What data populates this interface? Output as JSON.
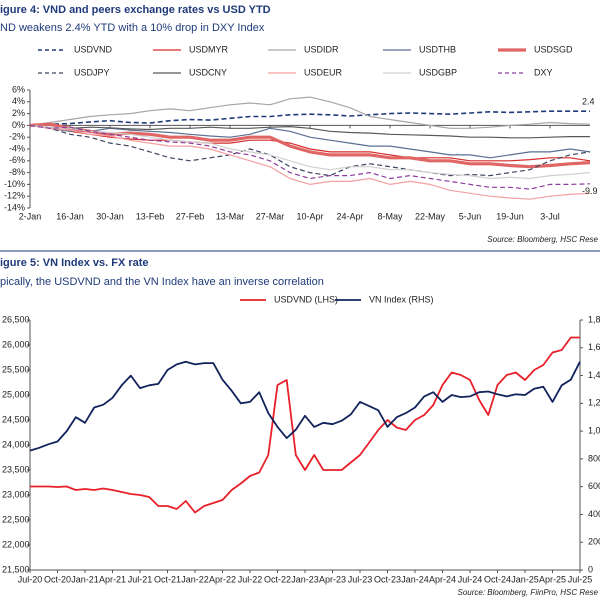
{
  "chart_data": [
    {
      "type": "line",
      "title": "igure 4: VND and peers exchange rates vs USD YTD",
      "subtitle": "ND weakens 2.4% YTD with a 10% drop in DXY Index",
      "source": "Source: Bloomberg, HSC Rese",
      "categories": [
        "2-Jan",
        null,
        "16-Jan",
        null,
        "30-Jan",
        null,
        "13-Feb",
        null,
        "27-Feb",
        null,
        "13-Mar",
        null,
        "27-Mar",
        null,
        "10-Apr",
        null,
        "24-Apr",
        null,
        "8-May",
        null,
        "22-May",
        null,
        "5-Jun",
        null,
        "19-Jun",
        null,
        "3-Jul",
        null,
        null
      ],
      "ylim": [
        -14,
        6
      ],
      "yticks": [
        {
          "value": 6,
          "label": "6%"
        },
        {
          "value": 4,
          "label": "4%"
        },
        {
          "value": 2,
          "label": "2%"
        },
        {
          "value": 0,
          "label": "0%"
        },
        {
          "value": -2,
          "label": "-2%"
        },
        {
          "value": -4,
          "label": "-4%"
        },
        {
          "value": -6,
          "label": "-6%"
        },
        {
          "value": -8,
          "label": "-8%"
        },
        {
          "value": -10,
          "label": "-10%"
        },
        {
          "value": -12,
          "label": "-12%"
        },
        {
          "value": -14,
          "label": "-14%"
        }
      ],
      "series": [
        {
          "name": "USDVND",
          "color": "#1f3a7a",
          "dash": true,
          "width": 1.6,
          "values": [
            0,
            0.2,
            0.3,
            0.6,
            0.8,
            0.5,
            0.4,
            0.8,
            1,
            0.9,
            1.2,
            1.5,
            1.5,
            1.8,
            1.9,
            1.8,
            1.6,
            1.8,
            2.0,
            2.1,
            2.0,
            1.9,
            2.1,
            2.3,
            2.2,
            2.3,
            2.4,
            2.4,
            2.4
          ]
        },
        {
          "name": "USDMYR",
          "color": "#d62b2b",
          "dash": false,
          "width": 1.2,
          "values": [
            0,
            -0.5,
            -1,
            -1.5,
            -2,
            -2.3,
            -2.5,
            -2.5,
            -2.8,
            -3,
            -3,
            -2.5,
            -2.5,
            -3,
            -4,
            -4.5,
            -4.5,
            -4.5,
            -5,
            -5.5,
            -5.5,
            -5.5,
            -6,
            -6,
            -6,
            -5.8,
            -5.5,
            -5.5,
            -6
          ]
        },
        {
          "name": "USDIDR",
          "color": "#a6a6a6",
          "dash": false,
          "width": 1.2,
          "values": [
            0,
            0.5,
            1,
            1.5,
            1.8,
            2,
            2.5,
            2.8,
            2.5,
            3,
            3.5,
            3.8,
            3.5,
            4.5,
            4.8,
            4,
            3,
            1.5,
            1,
            0.5,
            0,
            -0.5,
            -0.5,
            -0.3,
            0,
            0.2,
            0.5,
            0.3,
            0.2
          ]
        },
        {
          "name": "USDTHB",
          "color": "#5a6f93",
          "dash": false,
          "width": 1.2,
          "values": [
            0,
            -0.5,
            -1,
            -1,
            -0.5,
            -0.8,
            -1,
            -1.2,
            -1.5,
            -1.8,
            -2,
            -1.5,
            -0.5,
            -1,
            -2,
            -2.5,
            -3,
            -3.5,
            -3.5,
            -4,
            -4.5,
            -5,
            -5,
            -5.5,
            -5,
            -4.5,
            -4.5,
            -4,
            -4.5
          ]
        },
        {
          "name": "USDSGD",
          "color": "#e06666",
          "dash": false,
          "width": 3.2,
          "values": [
            0,
            0.2,
            -0.5,
            -1,
            -1.5,
            -1.3,
            -1.5,
            -2,
            -2,
            -2.5,
            -2.5,
            -2,
            -2,
            -3.5,
            -4.5,
            -5,
            -5,
            -5,
            -5.5,
            -5.5,
            -6,
            -6,
            -6.5,
            -6.5,
            -6.8,
            -7,
            -6.8,
            -6.5,
            -6.3
          ]
        },
        {
          "name": "USDJPY",
          "color": "#3b4660",
          "dash": true,
          "width": 1.2,
          "values": [
            0,
            -0.5,
            -1.5,
            -2,
            -3,
            -3.5,
            -4.5,
            -5.5,
            -6,
            -5.5,
            -5,
            -4,
            -5,
            -7,
            -8,
            -8.5,
            -7,
            -6.5,
            -7,
            -7.5,
            -8,
            -8.5,
            -8.3,
            -8.5,
            -8,
            -7.5,
            -6,
            -5,
            -4.5
          ]
        },
        {
          "name": "USDCNY",
          "color": "#595959",
          "dash": false,
          "width": 1.2,
          "values": [
            0,
            -0.3,
            -0.5,
            -0.3,
            -0.4,
            -0.6,
            -0.7,
            -0.5,
            -0.5,
            -0.3,
            -0.5,
            -0.5,
            -0.3,
            -0.2,
            -0.5,
            -1.0,
            -1.2,
            -1.3,
            -1.5,
            -1.6,
            -1.7,
            -1.8,
            -2.0,
            -2.0,
            -2.1,
            -2.1,
            -2.0,
            -1.9,
            -1.9
          ]
        },
        {
          "name": "USDEUR",
          "color": "#f4a0a0",
          "dash": false,
          "width": 1.2,
          "values": [
            0,
            -0.5,
            -0.8,
            -1.5,
            -1.8,
            -2.5,
            -3,
            -3.5,
            -3.5,
            -4,
            -5,
            -6,
            -7,
            -9,
            -10,
            -9.5,
            -9.5,
            -9,
            -10,
            -9.5,
            -10,
            -11,
            -11.5,
            -12,
            -12.3,
            -12.5,
            -12,
            -11.7,
            -11.5
          ]
        },
        {
          "name": "USDGBP",
          "color": "#d0d0d0",
          "dash": false,
          "width": 1.2,
          "values": [
            0,
            -0.3,
            -0.5,
            -1,
            -1.2,
            -1.5,
            -2,
            -2.5,
            -2.8,
            -3,
            -4,
            -4.5,
            -5,
            -6,
            -7,
            -7.5,
            -7,
            -7,
            -7.5,
            -7.5,
            -8,
            -8.3,
            -8.5,
            -9,
            -8.8,
            -9,
            -8.5,
            -8.3,
            -8
          ]
        },
        {
          "name": "DXY",
          "color": "#8e3d9e",
          "dash": true,
          "width": 1.2,
          "values": [
            0,
            -0.5,
            -0.3,
            -1,
            -1.5,
            -2,
            -2.5,
            -2.8,
            -3,
            -3.5,
            -4.5,
            -5,
            -6,
            -8,
            -9,
            -8.5,
            -8.5,
            -8,
            -9,
            -8.5,
            -9,
            -9.5,
            -10,
            -10.5,
            -10.5,
            -10.8,
            -10,
            -10,
            -9.9
          ]
        }
      ],
      "data_labels": [
        "chart_data.0.series.0.values.28",
        "chart_data.0.series.9.values.28"
      ],
      "legend": "top"
    },
    {
      "type": "line",
      "title": "igure 5: VN Index vs. FX rate",
      "subtitle": "pically, the USDVND and the VN Index have an inverse correlation",
      "source": "Source: Bloomberg, FiinPro, HSC Rese",
      "categories": [
        "Jul-20",
        null,
        null,
        "Oct-20",
        null,
        null,
        "Jan-21",
        null,
        null,
        "Apr-21",
        null,
        null,
        "Jul-21",
        null,
        null,
        "Oct-21",
        null,
        null,
        "Jan-22",
        null,
        null,
        "Apr-22",
        null,
        null,
        "Jul-22",
        null,
        null,
        "Oct-22",
        null,
        null,
        "Jan-23",
        null,
        null,
        "Apr-23",
        null,
        null,
        "Jul-23",
        null,
        null,
        "Oct-23",
        null,
        null,
        "Jan-24",
        null,
        null,
        "Apr-24",
        null,
        null,
        "Jul-24",
        null,
        null,
        "Oct-24",
        null,
        null,
        "Jan-25",
        null,
        null,
        "Apr-25",
        null,
        null,
        "Jul-25"
      ],
      "ylim": [
        21500,
        26500
      ],
      "yticks": [
        {
          "value": 26500,
          "label": "26,500"
        },
        {
          "value": 26000,
          "label": "26,000"
        },
        {
          "value": 25500,
          "label": "25,500"
        },
        {
          "value": 25000,
          "label": "25,000"
        },
        {
          "value": 24500,
          "label": "24,500"
        },
        {
          "value": 24000,
          "label": "24,000"
        },
        {
          "value": 23500,
          "label": "23,500"
        },
        {
          "value": 23000,
          "label": "23,000"
        },
        {
          "value": 22500,
          "label": "22,500"
        },
        {
          "value": 22000,
          "label": "22,000"
        },
        {
          "value": 21500,
          "label": "21,500"
        }
      ],
      "y2lim": [
        0,
        1800
      ],
      "y2ticks": [
        {
          "value": 1800,
          "label": "1,800"
        },
        {
          "value": 1600,
          "label": "1,600"
        },
        {
          "value": 1400,
          "label": "1,400"
        },
        {
          "value": 1200,
          "label": "1,200"
        },
        {
          "value": 1000,
          "label": "1,000"
        },
        800,
        600,
        400,
        200,
        0
      ],
      "series": [
        {
          "name": "USDVND (LHS)",
          "color": "#e8202a",
          "dash": false,
          "width": 1.8,
          "values": [
            23170,
            23170,
            23170,
            23160,
            23170,
            23100,
            23120,
            23100,
            23130,
            23100,
            23060,
            23020,
            23000,
            22960,
            22780,
            22780,
            22720,
            22880,
            22650,
            22780,
            22840,
            22900,
            23100,
            23230,
            23380,
            23450,
            23800,
            25200,
            25300,
            23800,
            23500,
            23800,
            23500,
            23500,
            23500,
            23650,
            23800,
            24050,
            24300,
            24500,
            24350,
            24300,
            24500,
            24600,
            24800,
            25200,
            25450,
            25400,
            25300,
            24900,
            24600,
            25200,
            25400,
            25450,
            25300,
            25500,
            25600,
            25850,
            25900,
            26150,
            26150
          ]
        },
        {
          "name": "VN Index (RHS)",
          "color": "#12235c",
          "dash": false,
          "width": 1.8,
          "axis": "y2",
          "values": [
            860,
            880,
            905,
            925,
            1000,
            1100,
            1060,
            1170,
            1190,
            1240,
            1330,
            1400,
            1310,
            1330,
            1340,
            1440,
            1480,
            1500,
            1480,
            1490,
            1490,
            1370,
            1290,
            1200,
            1210,
            1280,
            1130,
            1030,
            950,
            1010,
            1110,
            1030,
            1060,
            1050,
            1075,
            1120,
            1210,
            1180,
            1150,
            1030,
            1100,
            1130,
            1170,
            1250,
            1280,
            1210,
            1260,
            1245,
            1250,
            1280,
            1285,
            1265,
            1250,
            1265,
            1260,
            1305,
            1320,
            1210,
            1330,
            1370,
            1500
          ]
        }
      ],
      "legend": "top"
    }
  ]
}
